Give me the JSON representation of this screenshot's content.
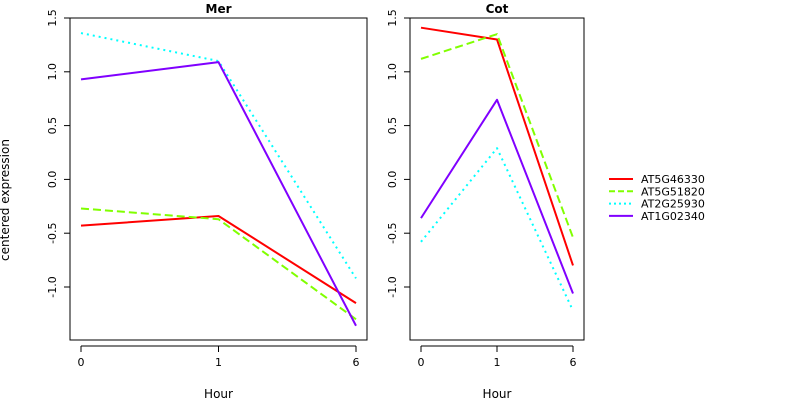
{
  "chart_data": {
    "type": "line",
    "ylabel": "centered expression",
    "xlabel": "Hour",
    "categories": [
      "0",
      "1",
      "6"
    ],
    "ylim": [
      -1.5,
      1.5
    ],
    "y_ticks": [
      -1.0,
      -0.5,
      0.0,
      0.5,
      1.0,
      1.5
    ],
    "y_tick_labels": [
      "-1.0",
      "-0.5",
      "0.0",
      "0.5",
      "1.0",
      "1.5"
    ],
    "grid": false,
    "legend_position": "right",
    "series_styles": [
      {
        "name": "AT5G46330",
        "color": "#ff0000",
        "dash": "solid"
      },
      {
        "name": "AT5G51820",
        "color": "#80ff00",
        "dash": "dashed"
      },
      {
        "name": "AT2G25930",
        "color": "#00ffff",
        "dash": "dotted"
      },
      {
        "name": "AT1G02340",
        "color": "#8000ff",
        "dash": "solid"
      }
    ],
    "panels": [
      {
        "title": "Mer",
        "series": [
          {
            "name": "AT5G46330",
            "values": [
              -0.43,
              -0.34,
              -1.15
            ]
          },
          {
            "name": "AT5G51820",
            "values": [
              -0.27,
              -0.37,
              -1.3
            ]
          },
          {
            "name": "AT2G25930",
            "values": [
              1.36,
              1.1,
              -0.92
            ]
          },
          {
            "name": "AT1G02340",
            "values": [
              0.93,
              1.09,
              -1.36
            ]
          }
        ]
      },
      {
        "title": "Cot",
        "series": [
          {
            "name": "AT5G46330",
            "values": [
              1.41,
              1.3,
              -0.8
            ]
          },
          {
            "name": "AT5G51820",
            "values": [
              1.12,
              1.35,
              -0.54
            ]
          },
          {
            "name": "AT2G25930",
            "values": [
              -0.58,
              0.29,
              -1.22
            ]
          },
          {
            "name": "AT1G02340",
            "values": [
              -0.36,
              0.74,
              -1.06
            ]
          }
        ]
      }
    ]
  }
}
